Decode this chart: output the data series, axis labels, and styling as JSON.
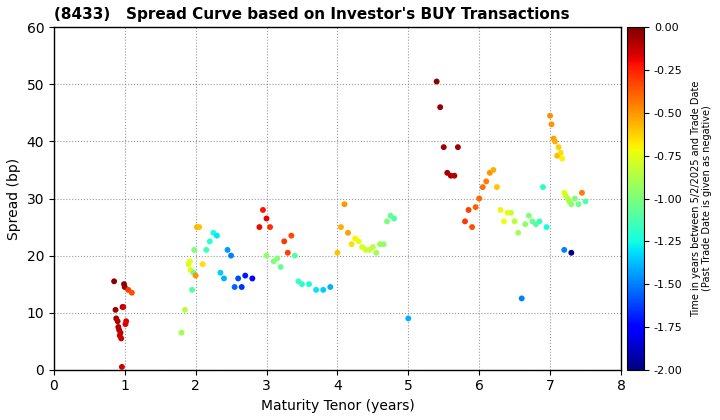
{
  "title": "(8433)   Spread Curve based on Investor's BUY Transactions",
  "xlabel": "Maturity Tenor (years)",
  "ylabel": "Spread (bp)",
  "colorbar_label": "Time in years between 5/2/2025 and Trade Date\n(Past Trade Date is given as negative)",
  "xlim": [
    0,
    8
  ],
  "ylim": [
    0,
    60
  ],
  "xticks": [
    0,
    1,
    2,
    3,
    4,
    5,
    6,
    7,
    8
  ],
  "yticks": [
    0,
    10,
    20,
    30,
    40,
    50,
    60
  ],
  "clim": [
    -2.0,
    0.0
  ],
  "cticks": [
    0.0,
    -0.25,
    -0.5,
    -0.75,
    -1.0,
    -1.25,
    -1.5,
    -1.75,
    -2.0
  ],
  "points": [
    [
      0.85,
      15.5,
      -0.02
    ],
    [
      0.87,
      10.5,
      -0.05
    ],
    [
      0.88,
      9.0,
      -0.06
    ],
    [
      0.9,
      8.5,
      -0.08
    ],
    [
      0.91,
      7.5,
      -0.09
    ],
    [
      0.92,
      7.0,
      -0.1
    ],
    [
      0.93,
      6.0,
      -0.11
    ],
    [
      0.94,
      6.5,
      -0.12
    ],
    [
      0.95,
      5.5,
      -0.13
    ],
    [
      0.96,
      0.5,
      -0.14
    ],
    [
      0.97,
      11.0,
      -0.01
    ],
    [
      0.98,
      11.0,
      -0.15
    ],
    [
      0.99,
      15.0,
      -0.03
    ],
    [
      1.0,
      14.5,
      -0.04
    ],
    [
      1.01,
      8.0,
      -0.16
    ],
    [
      1.02,
      8.5,
      -0.17
    ],
    [
      1.05,
      14.0,
      -0.3
    ],
    [
      1.1,
      13.5,
      -0.35
    ],
    [
      1.8,
      6.5,
      -0.9
    ],
    [
      1.85,
      10.5,
      -0.85
    ],
    [
      1.9,
      18.5,
      -0.8
    ],
    [
      1.92,
      19.0,
      -0.75
    ],
    [
      1.93,
      17.5,
      -0.7
    ],
    [
      1.95,
      14.0,
      -1.1
    ],
    [
      1.97,
      17.0,
      -1.05
    ],
    [
      1.98,
      21.0,
      -1.0
    ],
    [
      2.0,
      16.5,
      -0.5
    ],
    [
      2.02,
      25.0,
      -0.55
    ],
    [
      2.05,
      25.0,
      -0.6
    ],
    [
      2.1,
      18.5,
      -0.65
    ],
    [
      2.15,
      21.0,
      -1.15
    ],
    [
      2.2,
      22.5,
      -1.2
    ],
    [
      2.25,
      24.0,
      -1.25
    ],
    [
      2.3,
      23.5,
      -1.3
    ],
    [
      2.35,
      17.0,
      -1.35
    ],
    [
      2.4,
      16.0,
      -1.4
    ],
    [
      2.45,
      21.0,
      -1.45
    ],
    [
      2.5,
      20.0,
      -1.5
    ],
    [
      2.55,
      14.5,
      -1.55
    ],
    [
      2.6,
      16.0,
      -1.6
    ],
    [
      2.65,
      14.5,
      -1.65
    ],
    [
      2.7,
      16.5,
      -1.7
    ],
    [
      2.8,
      16.0,
      -1.75
    ],
    [
      2.9,
      25.0,
      -0.2
    ],
    [
      2.95,
      28.0,
      -0.22
    ],
    [
      3.0,
      26.5,
      -0.18
    ],
    [
      3.0,
      20.0,
      -0.95
    ],
    [
      3.05,
      25.0,
      -0.28
    ],
    [
      3.1,
      19.0,
      -1.0
    ],
    [
      3.15,
      19.5,
      -0.98
    ],
    [
      3.2,
      18.0,
      -1.05
    ],
    [
      3.25,
      22.5,
      -0.3
    ],
    [
      3.3,
      20.5,
      -0.32
    ],
    [
      3.35,
      23.5,
      -0.33
    ],
    [
      3.4,
      20.0,
      -1.1
    ],
    [
      3.45,
      15.5,
      -1.15
    ],
    [
      3.5,
      15.0,
      -1.2
    ],
    [
      3.6,
      15.0,
      -1.25
    ],
    [
      3.7,
      14.0,
      -1.3
    ],
    [
      3.8,
      14.0,
      -1.35
    ],
    [
      3.9,
      14.5,
      -1.4
    ],
    [
      4.0,
      20.5,
      -0.6
    ],
    [
      4.05,
      25.0,
      -0.55
    ],
    [
      4.1,
      29.0,
      -0.5
    ],
    [
      4.15,
      24.0,
      -0.52
    ],
    [
      4.2,
      22.0,
      -0.65
    ],
    [
      4.25,
      23.0,
      -0.7
    ],
    [
      4.3,
      22.5,
      -0.75
    ],
    [
      4.35,
      21.5,
      -0.78
    ],
    [
      4.4,
      21.0,
      -0.8
    ],
    [
      4.45,
      21.0,
      -0.82
    ],
    [
      4.5,
      21.5,
      -0.85
    ],
    [
      4.55,
      20.5,
      -0.9
    ],
    [
      4.6,
      22.0,
      -0.92
    ],
    [
      4.65,
      22.0,
      -0.95
    ],
    [
      4.7,
      26.0,
      -1.0
    ],
    [
      4.75,
      27.0,
      -1.05
    ],
    [
      4.8,
      26.5,
      -1.1
    ],
    [
      5.0,
      9.0,
      -1.4
    ],
    [
      5.4,
      50.5,
      -0.02
    ],
    [
      5.45,
      46.0,
      -0.04
    ],
    [
      5.5,
      39.0,
      -0.05
    ],
    [
      5.55,
      34.5,
      -0.07
    ],
    [
      5.6,
      34.0,
      -0.08
    ],
    [
      5.65,
      34.0,
      -0.09
    ],
    [
      5.7,
      39.0,
      -0.06
    ],
    [
      5.8,
      26.0,
      -0.3
    ],
    [
      5.85,
      28.0,
      -0.32
    ],
    [
      5.9,
      25.0,
      -0.35
    ],
    [
      5.95,
      28.5,
      -0.38
    ],
    [
      6.0,
      30.0,
      -0.4
    ],
    [
      6.05,
      32.0,
      -0.42
    ],
    [
      6.1,
      33.0,
      -0.45
    ],
    [
      6.15,
      34.5,
      -0.5
    ],
    [
      6.2,
      35.0,
      -0.55
    ],
    [
      6.25,
      32.0,
      -0.6
    ],
    [
      6.3,
      28.0,
      -0.7
    ],
    [
      6.35,
      26.0,
      -0.72
    ],
    [
      6.4,
      27.5,
      -0.75
    ],
    [
      6.45,
      27.5,
      -0.8
    ],
    [
      6.5,
      26.0,
      -0.85
    ],
    [
      6.55,
      24.0,
      -0.9
    ],
    [
      6.6,
      12.5,
      -1.5
    ],
    [
      6.65,
      25.5,
      -0.95
    ],
    [
      6.7,
      27.0,
      -1.0
    ],
    [
      6.75,
      26.0,
      -1.05
    ],
    [
      6.8,
      25.5,
      -1.1
    ],
    [
      6.85,
      26.0,
      -1.15
    ],
    [
      6.9,
      32.0,
      -1.2
    ],
    [
      6.95,
      25.0,
      -1.25
    ],
    [
      7.0,
      44.5,
      -0.48
    ],
    [
      7.02,
      43.0,
      -0.5
    ],
    [
      7.05,
      40.5,
      -0.52
    ],
    [
      7.07,
      40.0,
      -0.55
    ],
    [
      7.1,
      37.5,
      -0.58
    ],
    [
      7.12,
      39.0,
      -0.62
    ],
    [
      7.15,
      38.0,
      -0.65
    ],
    [
      7.17,
      37.0,
      -0.7
    ],
    [
      7.2,
      31.0,
      -0.75
    ],
    [
      7.22,
      30.5,
      -0.8
    ],
    [
      7.25,
      30.0,
      -0.85
    ],
    [
      7.27,
      29.5,
      -0.9
    ],
    [
      7.3,
      29.0,
      -0.95
    ],
    [
      7.35,
      30.0,
      -1.0
    ],
    [
      7.4,
      29.0,
      -1.05
    ],
    [
      7.45,
      31.0,
      -0.45
    ],
    [
      7.5,
      29.5,
      -1.1
    ],
    [
      7.2,
      21.0,
      -1.5
    ],
    [
      7.3,
      20.5,
      -2.0
    ]
  ]
}
